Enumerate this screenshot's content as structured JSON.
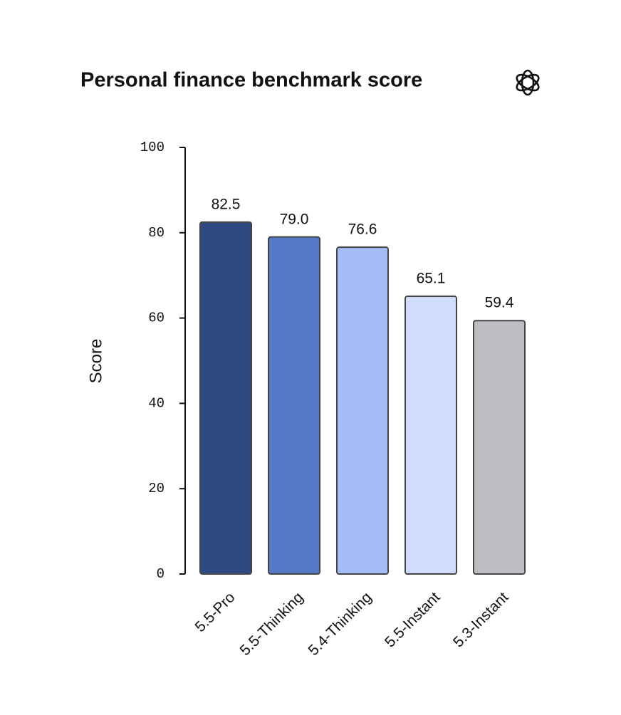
{
  "chart_data": {
    "type": "bar",
    "title": "Personal finance benchmark score",
    "y_label": "Score",
    "categories": [
      "5.5-Pro",
      "5.5-Thinking",
      "5.4-Thinking",
      "5.5-Instant",
      "5.3-Instant"
    ],
    "values": [
      82.5,
      79.0,
      76.6,
      65.1,
      59.4
    ],
    "value_labels": [
      "82.5",
      "79.0",
      "76.6",
      "65.1",
      "59.4"
    ],
    "colors": [
      "#2f4a80",
      "#5578c4",
      "#a4bdf7",
      "#cfdcfb",
      "#bdbec3"
    ],
    "ylim": [
      0,
      100
    ],
    "yticks": [
      0,
      20,
      40,
      60,
      80,
      100
    ],
    "grid": false
  }
}
